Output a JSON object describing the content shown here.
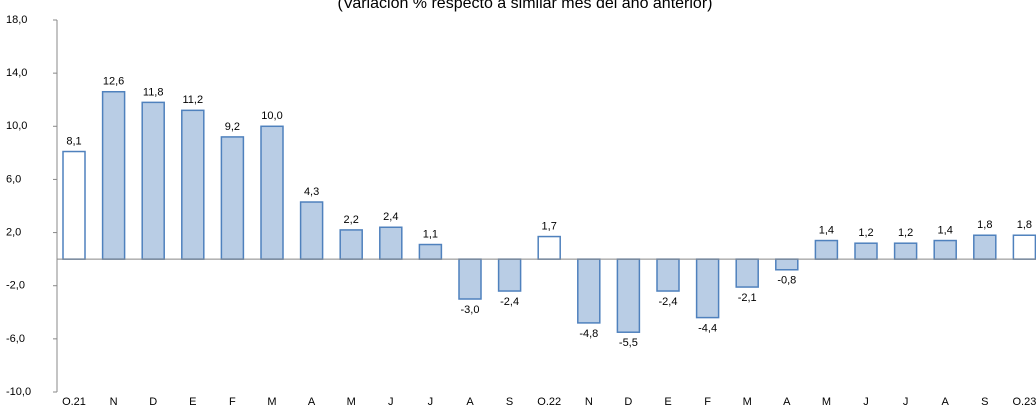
{
  "chart_data": {
    "type": "bar",
    "title": "(Variación % respecto a similar mes del año anterior)",
    "categories": [
      "O.21",
      "N",
      "D",
      "E",
      "F",
      "M",
      "A",
      "M",
      "J",
      "J",
      "A",
      "S",
      "O.22",
      "N",
      "D",
      "E",
      "F",
      "M",
      "A",
      "M",
      "J",
      "J",
      "A",
      "S",
      "O.23"
    ],
    "values": [
      8.1,
      12.6,
      11.8,
      11.2,
      9.2,
      10.0,
      4.3,
      2.2,
      2.4,
      1.1,
      -3.0,
      -2.4,
      1.7,
      -4.8,
      -5.5,
      -2.4,
      -4.4,
      -2.1,
      -0.8,
      1.4,
      1.2,
      1.2,
      1.4,
      1.8,
      1.8
    ],
    "value_labels": [
      "8,1",
      "12,6",
      "11,8",
      "11,2",
      "9,2",
      "10,0",
      "4,3",
      "2,2",
      "2,4",
      "1,1",
      "-3,0",
      "-2,4",
      "1,7",
      "-4,8",
      "-5,5",
      "-2,4",
      "-4,4",
      "-2,1",
      "-0,8",
      "1,4",
      "1,2",
      "1,2",
      "1,4",
      "1,8",
      "1,8"
    ],
    "colors": [
      "#ffffff",
      "#b9cde5",
      "#b9cde5",
      "#b9cde5",
      "#b9cde5",
      "#b9cde5",
      "#b9cde5",
      "#b9cde5",
      "#b9cde5",
      "#b9cde5",
      "#b9cde5",
      "#b9cde5",
      "#ffffff",
      "#b9cde5",
      "#b9cde5",
      "#b9cde5",
      "#b9cde5",
      "#b9cde5",
      "#b9cde5",
      "#b9cde5",
      "#b9cde5",
      "#b9cde5",
      "#b9cde5",
      "#b9cde5",
      "#ffffff"
    ],
    "edge_color": "#4f81bd",
    "ylim": [
      -10,
      18
    ],
    "yticks": [
      {
        "value": -10,
        "label": "-10,0"
      },
      {
        "value": -6,
        "label": "-6,0"
      },
      {
        "value": -2,
        "label": "-2,0"
      },
      {
        "value": 2,
        "label": "2,0"
      },
      {
        "value": 6,
        "label": "6,0"
      },
      {
        "value": 10,
        "label": "10,0"
      },
      {
        "value": 14,
        "label": "14,0"
      },
      {
        "value": 18,
        "label": "18,0"
      }
    ],
    "grid": false
  }
}
